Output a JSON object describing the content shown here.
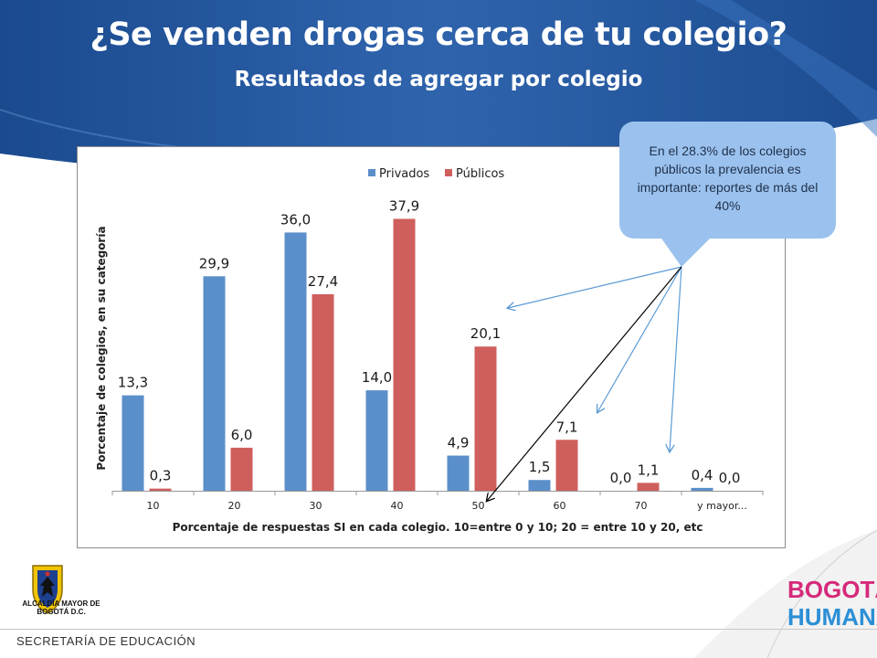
{
  "slide": {
    "title": "¿Se venden drogas cerca de tu colegio?",
    "subtitle": "Resultados de agregar por colegio",
    "callout": "En el 28.3% de los colegios públicos la prevalencia es importante: reportes de más del 40%",
    "footer": "SECRETARÍA DE EDUCACIÓN",
    "logo_left": "ALCALDÍA MAYOR DE BOGOTÁ D.C.",
    "logo_right_line1": "BOGOTÁ",
    "logo_right_line2": "HUMANA"
  },
  "colors": {
    "privados": "#5b8fc9",
    "publicos": "#cf5f5c",
    "banner": "#1f4f94"
  },
  "chart_data": {
    "type": "bar",
    "categories": [
      "10",
      "20",
      "30",
      "40",
      "50",
      "60",
      "70",
      "y mayor..."
    ],
    "series": [
      {
        "name": "Privados",
        "values": [
          13.3,
          29.9,
          36.0,
          14.0,
          4.9,
          1.5,
          0.0,
          0.4
        ],
        "labels": [
          "13,3",
          "29,9",
          "36,0",
          "14,0",
          "4,9",
          "1,5",
          "0,0",
          "0,4"
        ]
      },
      {
        "name": "Públicos",
        "values": [
          0.3,
          6.0,
          27.4,
          37.9,
          20.1,
          7.1,
          1.1,
          0.0
        ],
        "labels": [
          "0,3",
          "6,0",
          "27,4",
          "37,9",
          "20,1",
          "7,1",
          "1,1",
          "0,0"
        ]
      }
    ],
    "xlabel": "Porcentaje de respuestas SI en cada colegio. 10=entre 0 y 10; 20 = entre 10 y 20, etc",
    "ylabel": "Porcentaje de colegios, en su categoría",
    "ylim": [
      0,
      40
    ],
    "legend": "top",
    "grid": false
  }
}
